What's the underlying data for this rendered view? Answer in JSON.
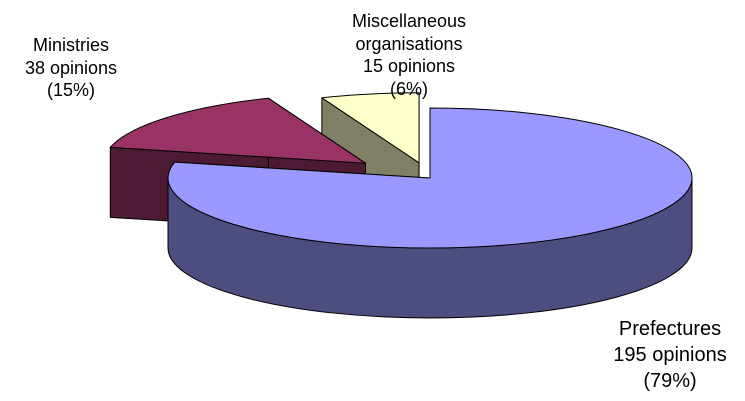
{
  "chart_data": {
    "type": "pie",
    "three_d": true,
    "exploded": true,
    "slices": [
      {
        "label": "Prefectures",
        "count_text": "195 opinions",
        "percent_text": "(79%)",
        "value": 195,
        "color": "#9999ff",
        "side_color": "#4d4d80"
      },
      {
        "label": "Ministries",
        "count_text": "38 opinions",
        "percent_text": "(15%)",
        "value": 38,
        "color": "#993366",
        "side_color": "#4d1a33"
      },
      {
        "label": "Miscellaneous organisations",
        "label_lines": [
          "Miscellaneous",
          "organisations"
        ],
        "count_text": "15 opinions",
        "percent_text": "(6%)",
        "value": 15,
        "color": "#ffffcc",
        "side_color": "#808066"
      }
    ]
  }
}
